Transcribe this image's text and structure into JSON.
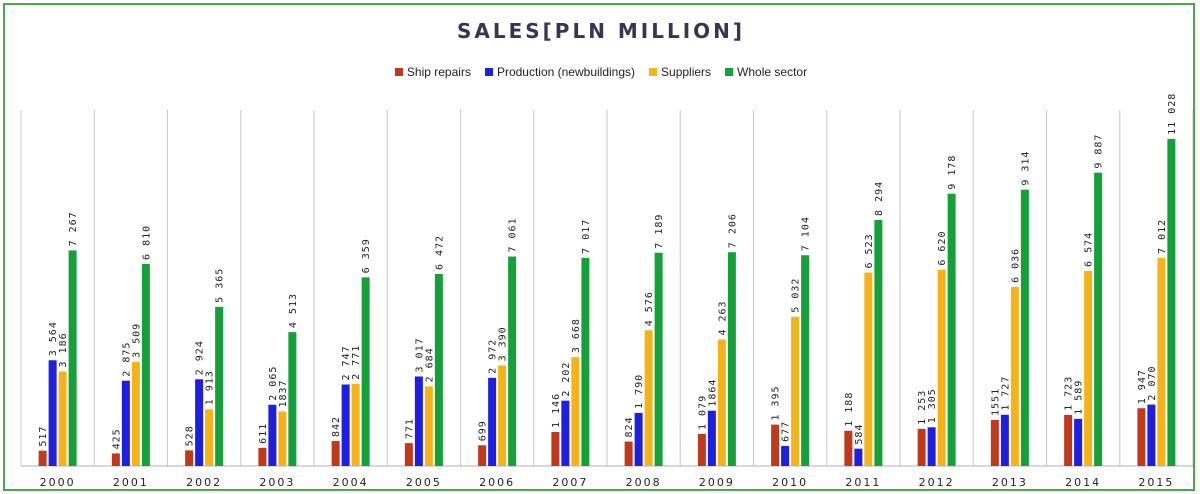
{
  "chart_data": {
    "type": "bar",
    "title": "SALES[PLN MILLION]",
    "categories": [
      "2000",
      "2001",
      "2002",
      "2003",
      "2004",
      "2005",
      "2006",
      "2007",
      "2008",
      "2009",
      "2010",
      "2011",
      "2012",
      "2013",
      "2014",
      "2015"
    ],
    "series": [
      {
        "name": "Ship repairs",
        "color": "#c0391b",
        "values": [
          517,
          425,
          528,
          611,
          842,
          771,
          699,
          1146,
          824,
          1079,
          1395,
          1188,
          1253,
          1551,
          1723,
          1947
        ],
        "labels": [
          "517",
          "425",
          "528",
          "611",
          "842",
          "771",
          "699",
          "1 146",
          "824",
          "1 079",
          "1 395",
          "1 188",
          "1 253",
          "1551",
          "1 723",
          "1 947"
        ]
      },
      {
        "name": "Production  (newbuildings)",
        "color": "#1f1fe0",
        "values": [
          3564,
          2875,
          2924,
          2065,
          2747,
          3017,
          2972,
          2202,
          1790,
          1864,
          677,
          584,
          1305,
          1727,
          1589,
          2070
        ],
        "labels": [
          "3 564",
          "2 875",
          "2 924",
          "2 065",
          "2 747",
          "3 017",
          "2 972",
          "2 202",
          "1 790",
          "1864",
          "677",
          "584",
          "1 305",
          "1 727",
          "1 589",
          "2 070"
        ]
      },
      {
        "name": "Suppliers",
        "color": "#f5b31a",
        "values": [
          3186,
          3509,
          1913,
          1837,
          2771,
          2684,
          3390,
          3668,
          4576,
          4263,
          5032,
          6523,
          6620,
          6036,
          6574,
          7012
        ],
        "labels": [
          "3 186",
          "3 509",
          "1 913",
          "1837",
          "2 771",
          "2 684",
          "3 390",
          "3 668",
          "4 576",
          "4 263",
          "5 032",
          "6 523",
          "6 620",
          "6 036",
          "6 574",
          "7 012"
        ]
      },
      {
        "name": "Whole sector",
        "color": "#16a03a",
        "values": [
          7267,
          6810,
          5365,
          4513,
          6359,
          6472,
          7061,
          7017,
          7189,
          7206,
          7104,
          8294,
          9178,
          9314,
          9887,
          11028
        ],
        "labels": [
          "7 267",
          "6 810",
          "5 365",
          "4 513",
          "6 359",
          "6 472",
          "7 061",
          "7 017",
          "7 189",
          "7 206",
          "7 104",
          "8 294",
          "9 178",
          "9 314",
          "9 887",
          "11 028"
        ]
      }
    ],
    "ylim": [
      0,
      12000
    ],
    "grid": "vertical",
    "legend_position": "top"
  }
}
